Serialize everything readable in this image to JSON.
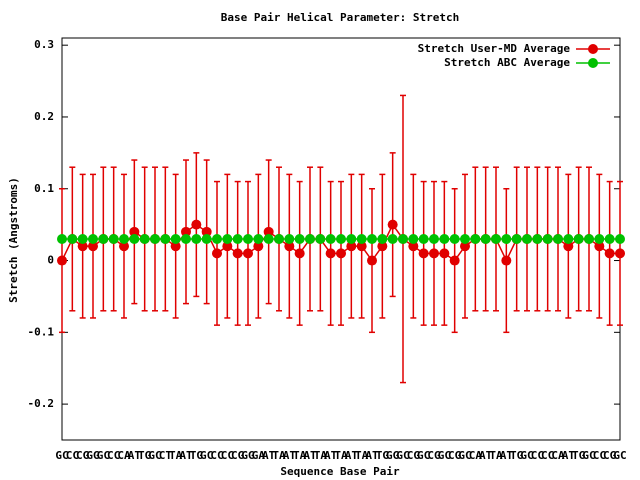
{
  "chart_data": {
    "type": "errorbar-line",
    "title": "Base Pair Helical Parameter: Stretch",
    "x_label": "Sequence Base Pair",
    "y_label": "Stretch (Angstroms)",
    "categories": [
      "GC",
      "CC",
      "CG",
      "GG",
      "GC",
      "CC",
      "CA",
      "AT",
      "TG",
      "GC",
      "CT",
      "TA",
      "AT",
      "TG",
      "GC",
      "CC",
      "CC",
      "CG",
      "GG",
      "GA",
      "AT",
      "TA",
      "AT",
      "TA",
      "AT",
      "TA",
      "AT",
      "TA",
      "AT",
      "TA",
      "AT",
      "TG",
      "GG",
      "GC",
      "CG",
      "GC",
      "CG",
      "GC",
      "CG",
      "GC",
      "CA",
      "AT",
      "TA",
      "AT",
      "TG",
      "GC",
      "CC",
      "CC",
      "CA",
      "AT",
      "TG",
      "GC",
      "CC",
      "CG",
      "GC"
    ],
    "series": [
      {
        "name": "Stretch User-MD Average",
        "color": "#e00000",
        "values": [
          0,
          0.03,
          0.02,
          0.02,
          0.03,
          0.03,
          0.02,
          0.04,
          0.03,
          0.03,
          0.03,
          0.02,
          0.04,
          0.05,
          0.04,
          0.01,
          0.02,
          0.01,
          0.01,
          0.02,
          0.04,
          0.03,
          0.02,
          0.01,
          0.03,
          0.03,
          0.01,
          0.01,
          0.02,
          0.02,
          0,
          0.02,
          0.05,
          0.03,
          0.02,
          0.01,
          0.01,
          0.01,
          0,
          0.02,
          0.03,
          0.03,
          0.03,
          0,
          0.03,
          0.03,
          0.03,
          0.03,
          0.03,
          0.02,
          0.03,
          0.03,
          0.02,
          0.01,
          0.01
        ],
        "errors": [
          0.1,
          0.1,
          0.1,
          0.1,
          0.1,
          0.1,
          0.1,
          0.1,
          0.1,
          0.1,
          0.1,
          0.1,
          0.1,
          0.1,
          0.1,
          0.1,
          0.1,
          0.1,
          0.1,
          0.1,
          0.1,
          0.1,
          0.1,
          0.1,
          0.1,
          0.1,
          0.1,
          0.1,
          0.1,
          0.1,
          0.1,
          0.1,
          0.1,
          0.2,
          0.1,
          0.1,
          0.1,
          0.1,
          0.1,
          0.1,
          0.1,
          0.1,
          0.1,
          0.1,
          0.1,
          0.1,
          0.1,
          0.1,
          0.1,
          0.1,
          0.1,
          0.1,
          0.1,
          0.1,
          0.1
        ]
      },
      {
        "name": "Stretch ABC Average",
        "color": "#00c000",
        "values": [
          0.03,
          0.03,
          0.03,
          0.03,
          0.03,
          0.03,
          0.03,
          0.03,
          0.03,
          0.03,
          0.03,
          0.03,
          0.03,
          0.03,
          0.03,
          0.03,
          0.03,
          0.03,
          0.03,
          0.03,
          0.03,
          0.03,
          0.03,
          0.03,
          0.03,
          0.03,
          0.03,
          0.03,
          0.03,
          0.03,
          0.03,
          0.03,
          0.03,
          0.03,
          0.03,
          0.03,
          0.03,
          0.03,
          0.03,
          0.03,
          0.03,
          0.03,
          0.03,
          0.03,
          0.03,
          0.03,
          0.03,
          0.03,
          0.03,
          0.03,
          0.03,
          0.03,
          0.03,
          0.03,
          0.03
        ]
      }
    ],
    "ylim": [
      -0.25,
      0.31
    ],
    "yticks": [
      -0.2,
      -0.1,
      0,
      0.1,
      0.2,
      0.3
    ],
    "legend": "top-right"
  }
}
